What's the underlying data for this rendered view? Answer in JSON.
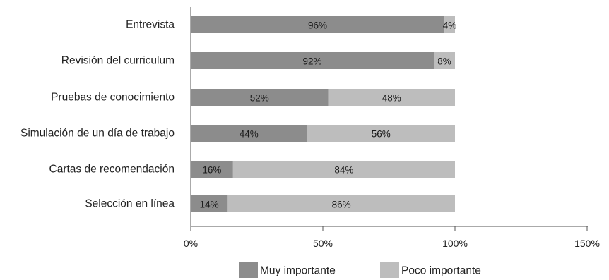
{
  "chart_data": {
    "type": "bar",
    "orientation": "horizontal",
    "stacked": true,
    "categories": [
      "Entrevista",
      "Revisión del curriculum",
      "Pruebas de conocimiento",
      "Simulación de un día de trabajo",
      "Cartas de recomendación",
      "Selección en línea"
    ],
    "series": [
      {
        "name": "Muy importante",
        "color": "#8c8c8c",
        "values": [
          96,
          92,
          52,
          44,
          16,
          14
        ],
        "labels": [
          "96%",
          "92%",
          "52%",
          "44%",
          "16%",
          "14%"
        ]
      },
      {
        "name": "Poco importante",
        "color": "#bdbdbd",
        "values": [
          4,
          8,
          48,
          56,
          84,
          86
        ],
        "labels": [
          "4%",
          "8%",
          "48%",
          "56%",
          "84%",
          "86%"
        ]
      }
    ],
    "xlim": [
      0,
      150
    ],
    "xticks": [
      0,
      50,
      100,
      150
    ],
    "xtick_labels": [
      "0%",
      "50%",
      "100%",
      "150%"
    ],
    "grid": false,
    "legend_position": "bottom"
  }
}
